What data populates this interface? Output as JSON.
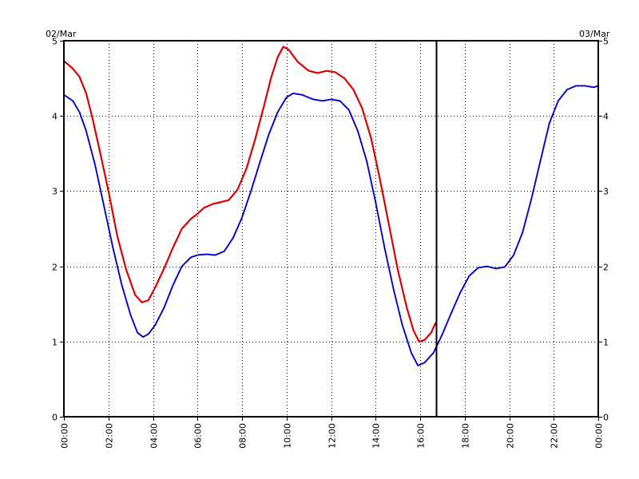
{
  "chart_data": {
    "type": "line",
    "title": "",
    "xlabel": "",
    "ylabel": "",
    "xlim": [
      0,
      24
    ],
    "ylim": [
      0,
      5
    ],
    "grid": true,
    "date_left": "02/Mar",
    "date_right": "03/Mar",
    "x_tick_labels": [
      "00:00",
      "02:00",
      "04:00",
      "06:00",
      "08:00",
      "10:00",
      "12:00",
      "14:00",
      "16:00",
      "18:00",
      "20:00",
      "22:00",
      "00:00"
    ],
    "x_ticks": [
      0,
      2,
      4,
      6,
      8,
      10,
      12,
      14,
      16,
      18,
      20,
      22,
      24
    ],
    "y_tick_labels": [
      "0",
      "1",
      "2",
      "3",
      "4",
      "5"
    ],
    "y_ticks": [
      0,
      1,
      2,
      3,
      4,
      5
    ],
    "current_time_marker": 16.7,
    "series": [
      {
        "color": "#dd0000",
        "style": "solid",
        "points": [
          [
            0.0,
            4.73
          ],
          [
            0.4,
            4.63
          ],
          [
            0.7,
            4.52
          ],
          [
            1.0,
            4.3
          ],
          [
            1.3,
            3.95
          ],
          [
            1.6,
            3.55
          ],
          [
            2.0,
            3.0
          ],
          [
            2.4,
            2.4
          ],
          [
            2.8,
            1.95
          ],
          [
            3.2,
            1.62
          ],
          [
            3.5,
            1.52
          ],
          [
            3.8,
            1.55
          ],
          [
            4.1,
            1.72
          ],
          [
            4.5,
            1.97
          ],
          [
            4.9,
            2.25
          ],
          [
            5.3,
            2.5
          ],
          [
            5.7,
            2.63
          ],
          [
            6.0,
            2.7
          ],
          [
            6.3,
            2.78
          ],
          [
            6.7,
            2.83
          ],
          [
            7.0,
            2.85
          ],
          [
            7.4,
            2.88
          ],
          [
            7.8,
            3.02
          ],
          [
            8.2,
            3.3
          ],
          [
            8.6,
            3.7
          ],
          [
            9.0,
            4.15
          ],
          [
            9.3,
            4.5
          ],
          [
            9.6,
            4.78
          ],
          [
            9.85,
            4.92
          ],
          [
            10.1,
            4.88
          ],
          [
            10.5,
            4.72
          ],
          [
            11.0,
            4.6
          ],
          [
            11.4,
            4.57
          ],
          [
            11.8,
            4.6
          ],
          [
            12.2,
            4.58
          ],
          [
            12.6,
            4.5
          ],
          [
            13.0,
            4.35
          ],
          [
            13.4,
            4.1
          ],
          [
            13.8,
            3.7
          ],
          [
            14.2,
            3.15
          ],
          [
            14.6,
            2.55
          ],
          [
            15.0,
            1.95
          ],
          [
            15.4,
            1.45
          ],
          [
            15.7,
            1.15
          ],
          [
            15.95,
            1.0
          ],
          [
            16.2,
            1.02
          ],
          [
            16.5,
            1.12
          ],
          [
            16.7,
            1.25
          ]
        ]
      },
      {
        "color": "#0000cc",
        "style": "dotted",
        "points": [
          [
            0.0,
            4.28
          ],
          [
            0.4,
            4.2
          ],
          [
            0.7,
            4.05
          ],
          [
            1.0,
            3.8
          ],
          [
            1.4,
            3.35
          ],
          [
            1.8,
            2.8
          ],
          [
            2.2,
            2.25
          ],
          [
            2.6,
            1.75
          ],
          [
            3.0,
            1.35
          ],
          [
            3.3,
            1.12
          ],
          [
            3.55,
            1.06
          ],
          [
            3.8,
            1.1
          ],
          [
            4.1,
            1.22
          ],
          [
            4.5,
            1.45
          ],
          [
            4.9,
            1.75
          ],
          [
            5.3,
            2.0
          ],
          [
            5.7,
            2.12
          ],
          [
            6.0,
            2.15
          ],
          [
            6.4,
            2.16
          ],
          [
            6.8,
            2.15
          ],
          [
            7.2,
            2.2
          ],
          [
            7.6,
            2.38
          ],
          [
            8.0,
            2.65
          ],
          [
            8.4,
            3.0
          ],
          [
            8.8,
            3.38
          ],
          [
            9.2,
            3.75
          ],
          [
            9.6,
            4.05
          ],
          [
            10.0,
            4.25
          ],
          [
            10.3,
            4.3
          ],
          [
            10.7,
            4.28
          ],
          [
            11.2,
            4.22
          ],
          [
            11.6,
            4.2
          ],
          [
            12.0,
            4.22
          ],
          [
            12.4,
            4.2
          ],
          [
            12.8,
            4.08
          ],
          [
            13.2,
            3.8
          ],
          [
            13.6,
            3.4
          ],
          [
            14.0,
            2.85
          ],
          [
            14.4,
            2.25
          ],
          [
            14.8,
            1.7
          ],
          [
            15.2,
            1.22
          ],
          [
            15.6,
            0.85
          ],
          [
            15.9,
            0.68
          ],
          [
            16.2,
            0.72
          ],
          [
            16.6,
            0.85
          ],
          [
            17.0,
            1.1
          ],
          [
            17.4,
            1.38
          ],
          [
            17.8,
            1.65
          ],
          [
            18.2,
            1.87
          ],
          [
            18.6,
            1.98
          ],
          [
            19.0,
            2.0
          ],
          [
            19.4,
            1.97
          ],
          [
            19.8,
            1.99
          ],
          [
            20.2,
            2.15
          ],
          [
            20.6,
            2.45
          ],
          [
            21.0,
            2.9
          ],
          [
            21.4,
            3.4
          ],
          [
            21.8,
            3.9
          ],
          [
            22.2,
            4.2
          ],
          [
            22.6,
            4.35
          ],
          [
            23.0,
            4.4
          ],
          [
            23.4,
            4.4
          ],
          [
            23.8,
            4.38
          ],
          [
            24.0,
            4.4
          ]
        ]
      }
    ]
  }
}
